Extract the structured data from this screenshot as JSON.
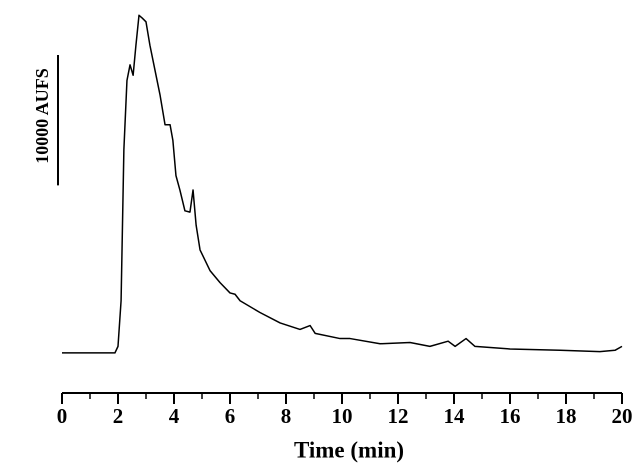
{
  "chart_data": {
    "type": "line",
    "x": [
      0,
      1.89,
      2.0,
      2.11,
      2.21,
      2.32,
      2.43,
      2.54,
      2.64,
      2.75,
      2.86,
      3.0,
      3.14,
      3.32,
      3.5,
      3.68,
      3.86,
      3.96,
      4.07,
      4.21,
      4.39,
      4.57,
      4.68,
      4.79,
      4.93,
      5.29,
      5.64,
      6.0,
      6.18,
      6.36,
      7.07,
      7.79,
      8.5,
      8.86,
      9.04,
      9.93,
      10.29,
      11.36,
      12.43,
      13.14,
      13.79,
      14.04,
      14.43,
      14.75,
      16.0,
      17.79,
      19.21,
      19.75,
      20.0
    ],
    "series": [
      {
        "color": "#000000",
        "values": [
          0,
          0,
          500,
          4000,
          15600,
          20900,
          22100,
          21300,
          23600,
          25900,
          25700,
          25400,
          23600,
          21700,
          19800,
          17500,
          17500,
          16300,
          13600,
          12500,
          10900,
          10800,
          12500,
          9800,
          7900,
          6300,
          5400,
          4600,
          4500,
          4000,
          3100,
          2300,
          1800,
          2100,
          1500,
          1100,
          1100,
          700,
          800,
          500,
          900,
          500,
          1100,
          500,
          300,
          200,
          100,
          200,
          500
        ]
      }
    ],
    "xlim": [
      0,
      20
    ],
    "xticks": [
      0,
      2,
      4,
      6,
      8,
      10,
      12,
      14,
      16,
      18,
      20
    ],
    "xminorticks": [
      1,
      3,
      5,
      7,
      9,
      11,
      13,
      15,
      17,
      19
    ],
    "ylim": [
      -3000,
      26000
    ],
    "xlabel": "Time (min)",
    "scale_bar": {
      "label": "10000 AUFS",
      "value": 10000
    }
  }
}
